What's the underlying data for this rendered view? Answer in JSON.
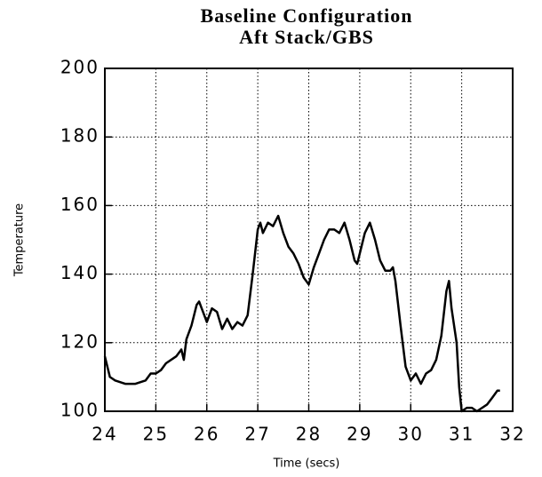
{
  "chart_data": {
    "type": "line",
    "title": "Baseline Configuration",
    "subtitle": "Aft Stack/GBS",
    "xlabel": "Time (secs)",
    "ylabel": "Temperature",
    "xlim": [
      24,
      32
    ],
    "xticks": [
      24,
      25,
      26,
      27,
      28,
      29,
      30,
      31,
      32
    ],
    "ylim": [
      100,
      200
    ],
    "yticks": [
      100,
      120,
      140,
      160,
      180,
      200
    ],
    "grid": true,
    "series": [
      {
        "color": "#000000",
        "x": [
          24.0,
          24.1,
          24.2,
          24.4,
          24.6,
          24.8,
          24.9,
          25.0,
          25.1,
          25.2,
          25.4,
          25.5,
          25.55,
          25.6,
          25.7,
          25.8,
          25.85,
          25.9,
          26.0,
          26.1,
          26.2,
          26.3,
          26.4,
          26.5,
          26.6,
          26.7,
          26.8,
          26.9,
          27.0,
          27.05,
          27.1,
          27.2,
          27.3,
          27.4,
          27.5,
          27.6,
          27.7,
          27.8,
          27.9,
          28.0,
          28.1,
          28.2,
          28.3,
          28.4,
          28.5,
          28.6,
          28.7,
          28.8,
          28.9,
          28.95,
          29.0,
          29.1,
          29.2,
          29.3,
          29.4,
          29.5,
          29.6,
          29.65,
          29.7,
          29.8,
          29.9,
          30.0,
          30.1,
          30.2,
          30.3,
          30.4,
          30.5,
          30.6,
          30.7,
          30.75,
          30.8,
          30.9,
          30.95,
          31.0,
          31.1,
          31.2,
          31.3,
          31.4,
          31.5,
          31.6,
          31.7,
          31.75
        ],
        "values": [
          116,
          110,
          109,
          108,
          108,
          109,
          111,
          111,
          112,
          114,
          116,
          118,
          115,
          121,
          125,
          131,
          132,
          130,
          126,
          130,
          129,
          124,
          127,
          124,
          126,
          125,
          128,
          140,
          153,
          155,
          152,
          155,
          154,
          157,
          152,
          148,
          146,
          143,
          139,
          137,
          142,
          146,
          150,
          153,
          153,
          152,
          155,
          150,
          144,
          143,
          146,
          152,
          155,
          150,
          144,
          141,
          141,
          142,
          138,
          125,
          113,
          109,
          111,
          108,
          111,
          112,
          115,
          122,
          135,
          138,
          130,
          120,
          107,
          100,
          101,
          101,
          100,
          101,
          102,
          104,
          106,
          106
        ]
      }
    ]
  }
}
